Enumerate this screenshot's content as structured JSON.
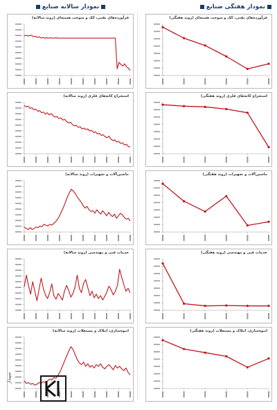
{
  "headers": {
    "weekly": "نمودار هفتگی صنایع",
    "yearly": "نمودار سالانه صنایع"
  },
  "colors": {
    "line": "#c0141a",
    "marker": "#c0141a",
    "axis": "#999999",
    "header": "#1a3a6b"
  },
  "logo": {
    "name": "logo-icon",
    "text": "سپیدار"
  },
  "chart_data": [
    {
      "type": "line",
      "panel": "weekly-1",
      "title": "فرآورده‌های نفتی، کک و سوخت هسته‌ای (روند هفتگی)",
      "categories": [
        "۱",
        "۲",
        "۳",
        "۴",
        "۵",
        "۶"
      ],
      "values": [
        9.6,
        8.1,
        7.1,
        5.6,
        3.9,
        4.6
      ],
      "ylim": [
        3,
        10
      ]
    },
    {
      "type": "line",
      "panel": "yearly-1",
      "title": "فرآورده‌های نفتی، کک و سوخت هسته‌ای (روند سالانه)",
      "values": [
        8.4,
        8.5,
        8.4,
        8.45,
        8.5,
        8.3,
        8.35,
        8.2,
        8.3,
        8.1,
        8.2,
        8.1,
        8.15,
        8.1,
        8.15,
        8.1,
        8.1,
        8.15,
        8.1,
        8.1,
        8.1,
        8.1,
        8.1,
        8.1,
        8.1,
        8.1,
        8.1,
        8.1,
        8.1,
        8.1,
        8.1,
        8.1,
        8.1,
        8.1,
        8.1,
        8.1,
        8.1,
        8.1,
        8.1,
        8.1,
        8.1,
        8.1,
        8.1,
        8.1,
        8.1,
        8.1,
        8.1,
        8.1,
        8.1,
        8.1,
        3.9,
        4.8,
        4.5,
        4.3,
        4.6,
        4.2,
        4.0,
        3.7
      ],
      "ylim": [
        3,
        10
      ]
    },
    {
      "type": "line",
      "panel": "weekly-2",
      "title": "استخراج کانه‌های فلزی (روند هفتگی)",
      "categories": [
        "۱",
        "۲",
        "۳",
        "۴",
        "۵",
        "۶"
      ],
      "values": [
        9.7,
        9.5,
        9.4,
        9.1,
        8.6,
        3.9
      ],
      "ylim": [
        3,
        10
      ]
    },
    {
      "type": "line",
      "panel": "yearly-2",
      "title": "استخراج کانه‌های فلزی (روند سالانه)",
      "values": [
        9.6,
        9.4,
        9.5,
        9.2,
        9.3,
        9.0,
        9.1,
        8.8,
        8.9,
        8.6,
        8.7,
        8.4,
        8.6,
        8.3,
        8.5,
        8.2,
        8.0,
        8.1,
        7.8,
        7.9,
        7.6,
        7.7,
        7.4,
        7.2,
        7.3,
        7.0,
        6.8,
        6.9,
        6.6,
        6.7,
        6.4,
        6.5,
        6.3,
        6.4,
        6.1,
        6.2,
        5.9,
        6.0,
        5.7,
        5.8,
        5.5,
        5.6,
        5.3,
        5.2,
        5.4,
        5.0,
        4.8,
        4.9,
        4.6,
        4.7,
        4.4,
        4.5,
        4.2,
        4.3,
        4.0,
        3.9
      ],
      "ylim": [
        3,
        10
      ]
    },
    {
      "type": "line",
      "panel": "weekly-3",
      "title": "ماشین‌آلات و تجهیزات (روند هفتگی)",
      "categories": [
        "۱",
        "۲",
        "۳",
        "۴",
        "۵",
        "۶"
      ],
      "values": [
        9.6,
        7.2,
        5.8,
        7.9,
        3.9,
        4.4
      ],
      "ylim": [
        3,
        10
      ]
    },
    {
      "type": "line",
      "panel": "yearly-3",
      "title": "ماشین‌آلات و تجهیزات (روند سالانه)",
      "values": [
        3.6,
        3.4,
        3.3,
        3.5,
        3.3,
        3.4,
        3.6,
        3.5,
        3.7,
        3.6,
        3.9,
        3.8,
        3.7,
        3.9,
        3.8,
        4.0,
        4.2,
        4.5,
        4.9,
        5.4,
        5.9,
        6.5,
        7.1,
        7.6,
        8.0,
        7.8,
        7.5,
        7.1,
        6.8,
        6.5,
        6.1,
        5.8,
        6.0,
        5.6,
        5.4,
        5.5,
        5.2,
        5.6,
        5.3,
        5.1,
        5.5,
        5.2,
        4.9,
        5.3,
        5.0,
        4.8,
        5.1,
        4.6,
        4.9,
        5.2,
        5.0,
        4.7,
        4.5,
        4.6,
        4.3
      ],
      "ylim": [
        3,
        9
      ]
    },
    {
      "type": "line",
      "panel": "weekly-4",
      "title": "خدمات فنی و مهندسی (روند هفتگی)",
      "categories": [
        "۱",
        "۲",
        "۳",
        "۴",
        "۵",
        "۶"
      ],
      "values": [
        9.4,
        3.9,
        3.6,
        3.65,
        3.6,
        3.6
      ],
      "ylim": [
        3,
        10
      ]
    },
    {
      "type": "line",
      "panel": "yearly-4",
      "title": "خدمات فنی و مهندسی (روند سالانه)",
      "values": [
        6.2,
        7.8,
        6.4,
        5.2,
        6.9,
        5.6,
        4.3,
        5.9,
        7.4,
        6.0,
        5.1,
        4.6,
        5.4,
        6.6,
        5.0,
        4.5,
        5.3,
        4.9,
        4.4,
        5.6,
        6.4,
        5.7,
        4.8,
        5.3,
        6.2,
        7.8,
        6.0,
        5.4,
        6.7,
        7.2,
        6.1,
        5.0,
        5.6,
        4.7,
        5.2,
        4.6,
        5.0,
        4.4,
        4.9,
        5.5,
        6.3,
        5.8,
        5.1,
        5.6,
        6.4,
        8.6,
        7.5,
        6.5,
        5.6,
        6.0,
        5.4
      ],
      "ylim": [
        3,
        10
      ]
    },
    {
      "type": "line",
      "panel": "weekly-5",
      "title": "انبوه‌سازی، املاک و مستغلات (روند هفتگی)",
      "categories": [
        "۱",
        "۲",
        "۳",
        "۴",
        "۵",
        "۶"
      ],
      "values": [
        9.6,
        8.4,
        7.9,
        7.4,
        5.9,
        7.1
      ],
      "ylim": [
        3,
        10
      ]
    },
    {
      "type": "line",
      "panel": "yearly-5",
      "title": "انبوه‌سازی، املاک و مستغلات (روند سالانه)",
      "values": [
        3.9,
        3.6,
        3.7,
        3.5,
        3.6,
        3.4,
        3.5,
        3.7,
        3.6,
        3.8,
        3.7,
        3.9,
        4.1,
        4.0,
        4.3,
        4.2,
        4.6,
        5.0,
        5.6,
        6.2,
        6.8,
        7.4,
        7.9,
        7.6,
        7.0,
        6.4,
        6.0,
        5.8,
        6.1,
        5.6,
        5.9,
        5.5,
        5.7,
        5.4,
        5.8,
        5.6,
        5.9,
        5.5,
        5.3,
        5.6,
        5.8,
        5.5,
        5.2,
        5.7,
        5.4,
        5.6,
        5.3,
        5.1,
        5.4,
        4.9,
        4.6
      ],
      "ylim": [
        3,
        9
      ]
    }
  ]
}
